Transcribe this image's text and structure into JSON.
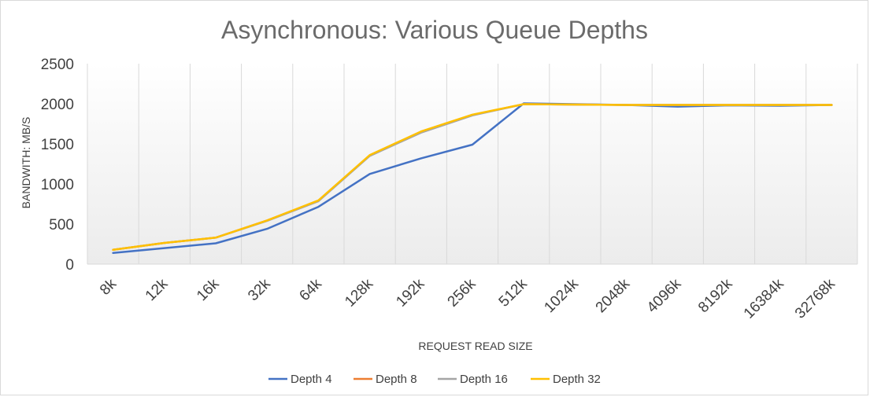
{
  "chart_data": {
    "type": "line",
    "title": "Asynchronous: Various Queue Depths",
    "xlabel": "REQUEST READ SIZE",
    "ylabel": "BANDWITH: MB/S",
    "categories": [
      "8k",
      "12k",
      "16k",
      "32k",
      "64k",
      "128k",
      "192k",
      "256k",
      "512k",
      "1024k",
      "2048k",
      "4096k",
      "8192k",
      "16384k",
      "32768k"
    ],
    "ylim": [
      0,
      2500
    ],
    "yticks": [
      "0",
      "500",
      "1000",
      "1500",
      "2000",
      "2500"
    ],
    "grid": "vertical",
    "legend_position": "bottom",
    "series": [
      {
        "name": "Depth 4",
        "color": "#4472C4",
        "values": [
          140,
          200,
          260,
          440,
          715,
          1125,
          1320,
          1490,
          2005,
          1995,
          1985,
          1965,
          1980,
          1975,
          1985
        ]
      },
      {
        "name": "Depth 8",
        "color": "#ED7D31",
        "values": [
          178,
          265,
          330,
          545,
          790,
          1355,
          1645,
          1860,
          1995,
          1990,
          1985,
          1985,
          1985,
          1985,
          1985
        ]
      },
      {
        "name": "Depth 16",
        "color": "#A5A5A5",
        "values": [
          178,
          265,
          330,
          540,
          785,
          1350,
          1640,
          1855,
          1995,
          1990,
          1985,
          1985,
          1985,
          1985,
          1985
        ]
      },
      {
        "name": "Depth 32",
        "color": "#FFC000",
        "values": [
          178,
          265,
          330,
          545,
          795,
          1360,
          1655,
          1865,
          1995,
          1990,
          1985,
          1985,
          1985,
          1985,
          1985
        ]
      }
    ]
  }
}
